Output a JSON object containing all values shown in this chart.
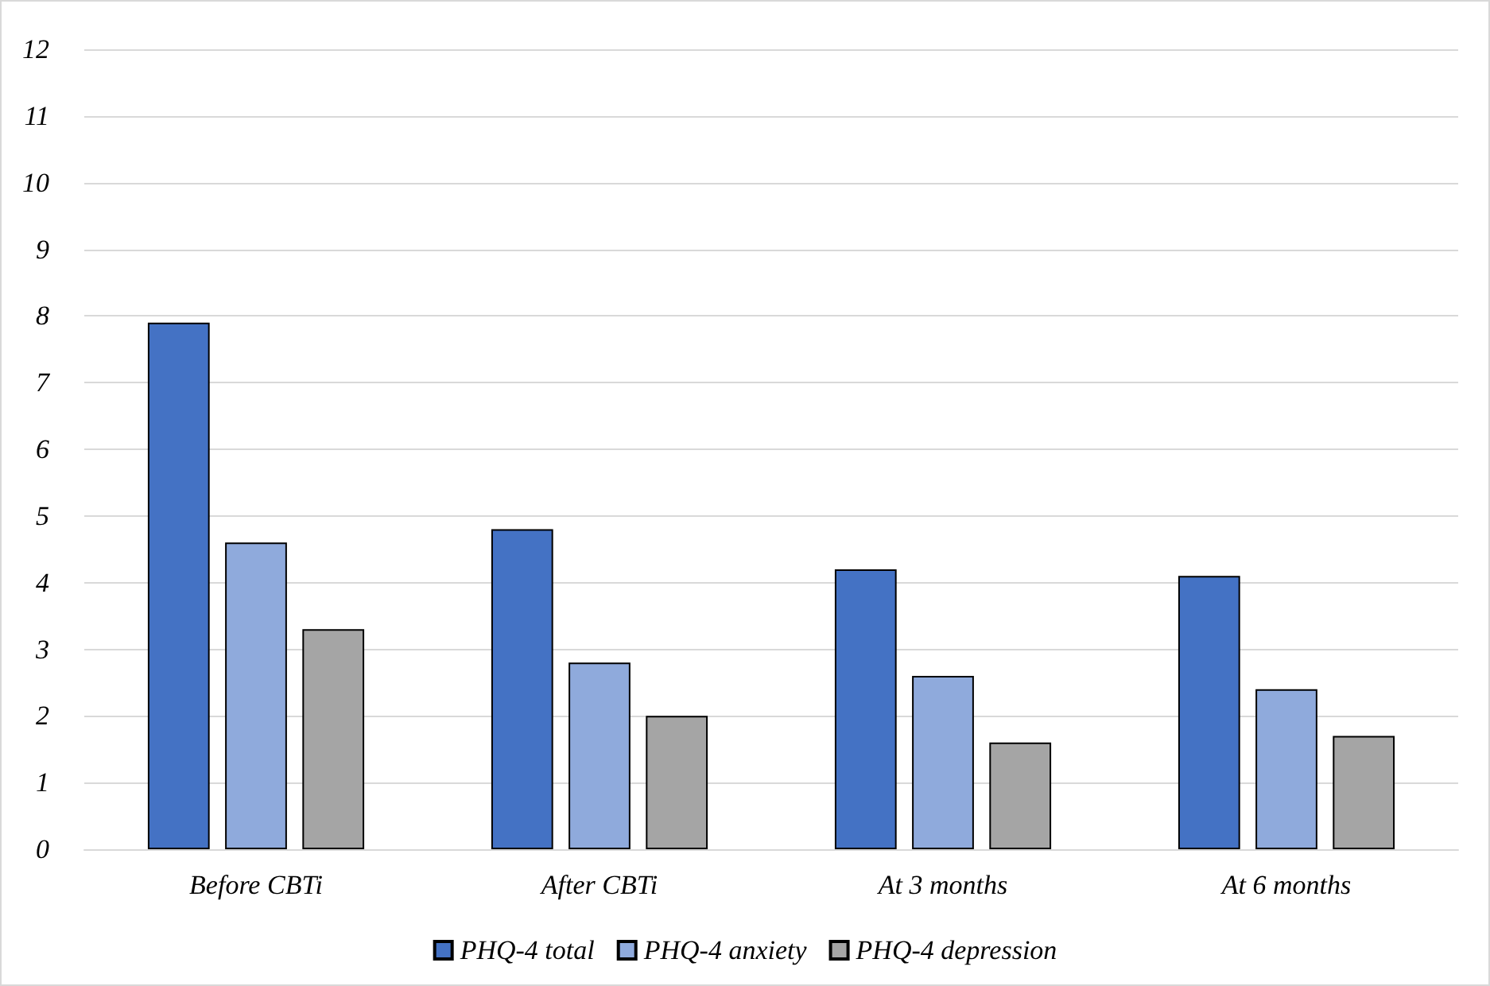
{
  "chart_data": {
    "type": "bar",
    "categories": [
      "Before CBTi",
      "After CBTi",
      "At 3 months",
      "At 6 months"
    ],
    "series": [
      {
        "name": "PHQ-4 total",
        "color": "#4472c4",
        "values": [
          7.9,
          4.8,
          4.2,
          4.1
        ]
      },
      {
        "name": "PHQ-4 anxiety",
        "color": "#8faadc",
        "values": [
          4.6,
          2.8,
          2.6,
          2.4
        ]
      },
      {
        "name": "PHQ-4 depression",
        "color": "#a5a5a5",
        "values": [
          3.3,
          2.0,
          1.6,
          1.7
        ]
      }
    ],
    "ylim": [
      0,
      12
    ],
    "yticks": [
      0,
      1,
      2,
      3,
      4,
      5,
      6,
      7,
      8,
      9,
      10,
      11,
      12
    ],
    "grid": "y",
    "legend": "bottom"
  }
}
